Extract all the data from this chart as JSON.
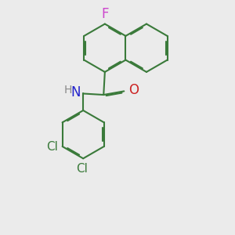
{
  "background_color": "#ebebeb",
  "bond_color": "#3a7a3a",
  "bond_width": 1.5,
  "atom_colors": {
    "F": "#cc44cc",
    "N": "#2222cc",
    "O": "#cc2222",
    "Cl": "#3a7a3a",
    "H": "#888888",
    "C": "#000000"
  },
  "font_size": 10,
  "fig_size": [
    3.0,
    3.0
  ],
  "dpi": 100
}
